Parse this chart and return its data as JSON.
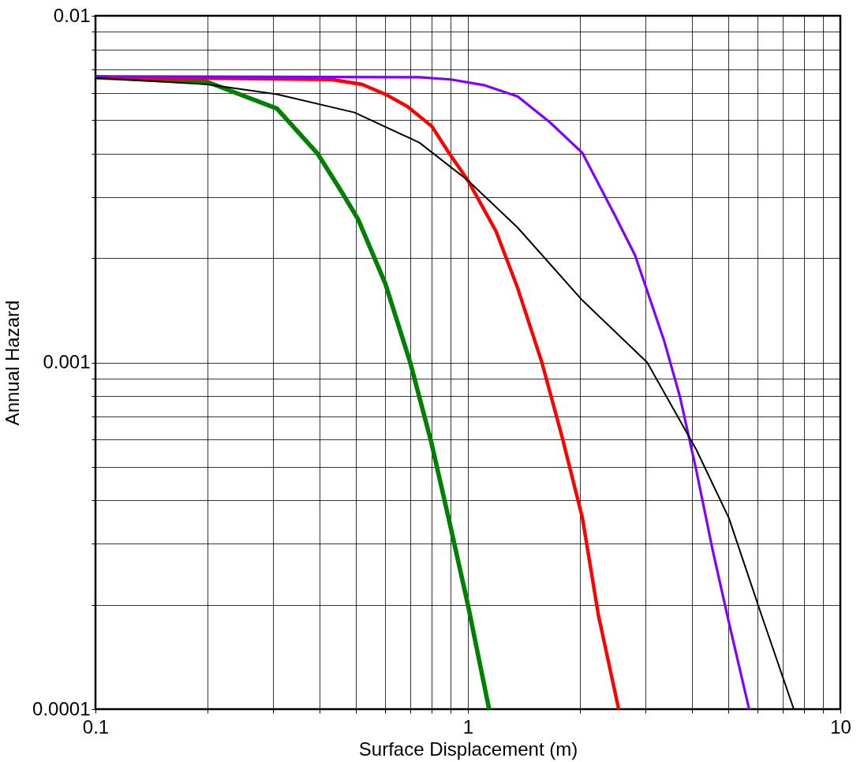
{
  "chart_data": {
    "type": "line",
    "xlabel": "Surface Displacement (m)",
    "ylabel": "Annual Hazard",
    "log": "xy",
    "grid": true,
    "marker": "none",
    "line_style": "solid",
    "xlim": [
      0.1,
      10
    ],
    "ylim": [
      0.0001,
      0.01
    ],
    "xticks": [
      0.1,
      {
        "value": 0.2,
        "label": null
      },
      {
        "value": 0.3,
        "label": null
      },
      {
        "value": 0.4,
        "label": null
      },
      {
        "value": 0.5,
        "label": null
      },
      {
        "value": 0.6,
        "label": null
      },
      {
        "value": 0.7,
        "label": null
      },
      {
        "value": 0.8,
        "label": null
      },
      {
        "value": 0.9,
        "label": null
      },
      1,
      {
        "value": 2,
        "label": null
      },
      {
        "value": 3,
        "label": null
      },
      {
        "value": 4,
        "label": null
      },
      {
        "value": 5,
        "label": null
      },
      {
        "value": 6,
        "label": null
      },
      {
        "value": 7,
        "label": null
      },
      {
        "value": 8,
        "label": null
      },
      {
        "value": 9,
        "label": null
      },
      10
    ],
    "yticks": [
      0.0001,
      {
        "value": 0.0002,
        "label": null
      },
      {
        "value": 0.0003,
        "label": null
      },
      {
        "value": 0.0004,
        "label": null
      },
      {
        "value": 0.0005,
        "label": null
      },
      {
        "value": 0.0006,
        "label": null
      },
      {
        "value": 0.0007,
        "label": null
      },
      {
        "value": 0.0008,
        "label": null
      },
      {
        "value": 0.0009,
        "label": null
      },
      0.001,
      {
        "value": 0.002,
        "label": null
      },
      {
        "value": 0.003,
        "label": null
      },
      {
        "value": 0.004,
        "label": null
      },
      {
        "value": 0.005,
        "label": null
      },
      {
        "value": 0.006,
        "label": null
      },
      {
        "value": 0.007,
        "label": null
      },
      {
        "value": 0.008,
        "label": null
      },
      {
        "value": 0.009,
        "label": null
      },
      0.01
    ],
    "series": [
      {
        "color": "#008000",
        "x": [
          0.1,
          0.2,
          0.307,
          0.395,
          0.452,
          0.507,
          0.6,
          0.7,
          0.796,
          0.897,
          1.0,
          1.14
        ],
        "values": [
          0.00665,
          0.00644,
          0.0054,
          0.004,
          0.00318,
          0.00259,
          0.00169,
          0.001,
          0.000593,
          0.000338,
          0.0002,
          0.0001
        ]
      },
      {
        "color": "#ff0000",
        "x": [
          0.1,
          0.43,
          0.52,
          0.6,
          0.687,
          0.8,
          0.89,
          1.0,
          1.19,
          1.36,
          1.58,
          1.79,
          2.03,
          2.24,
          2.54
        ],
        "values": [
          0.00665,
          0.00655,
          0.00634,
          0.00594,
          0.00548,
          0.0048,
          0.00402,
          0.00335,
          0.00239,
          0.00164,
          0.001,
          0.00061,
          0.000356,
          0.000187,
          0.0001
        ]
      },
      {
        "color": "#8000ff",
        "x": [
          0.1,
          0.74,
          0.9,
          1.11,
          1.36,
          1.66,
          2.03,
          2.48,
          2.81,
          3.36,
          3.71,
          4.1,
          4.54,
          5.02,
          5.69
        ],
        "values": [
          0.00669,
          0.00665,
          0.00655,
          0.0063,
          0.00585,
          0.00493,
          0.00402,
          0.00266,
          0.00204,
          0.00116,
          0.000796,
          0.000491,
          0.000288,
          0.000178,
          0.0001
        ]
      },
      {
        "color": "#000000",
        "x": [
          0.1,
          0.2,
          0.307,
          0.496,
          0.74,
          1.0,
          1.36,
          2.03,
          3.03,
          4.1,
          5.02,
          6.14,
          7.5
        ],
        "values": [
          0.00662,
          0.00634,
          0.00594,
          0.00526,
          0.00431,
          0.00335,
          0.00245,
          0.00151,
          0.001,
          0.000562,
          0.000356,
          0.000187,
          0.0001
        ]
      }
    ]
  }
}
